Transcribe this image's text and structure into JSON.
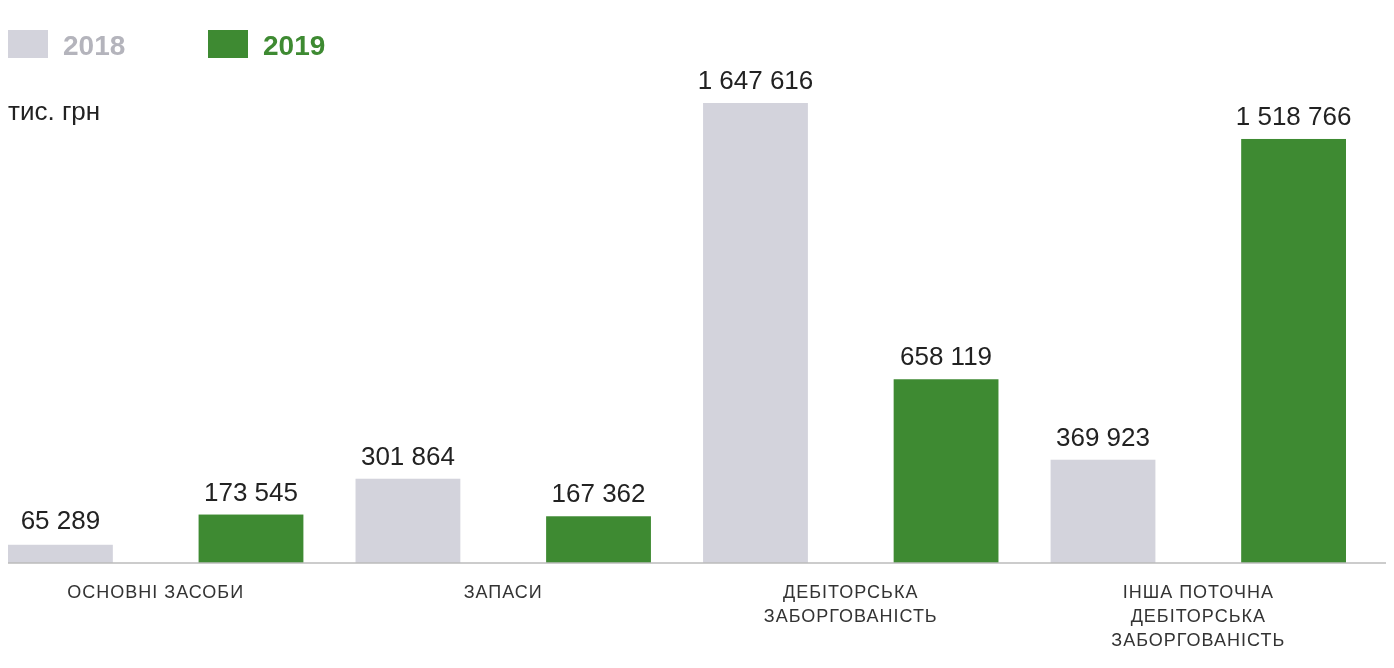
{
  "chart_data": {
    "type": "bar",
    "ylabel": "тис. грн",
    "categories": [
      "ОСНОВНІ ЗАСОБИ",
      "ЗАПАСИ",
      "ДЕБІТОРСЬКА ЗАБОРГОВАНІСТЬ",
      "ІНША ПОТОЧНА ДЕБІТОРСЬКА ЗАБОРГОВАНІСТЬ"
    ],
    "series": [
      {
        "name": "2018",
        "color": "#d3d3dc",
        "values": [
          65289,
          301864,
          1647616,
          369923
        ]
      },
      {
        "name": "2019",
        "color": "#3e8a32",
        "values": [
          173545,
          167362,
          658119,
          1518766
        ]
      }
    ],
    "data_labels": true,
    "legend": "top left"
  }
}
